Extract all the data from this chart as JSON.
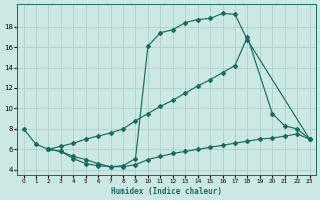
{
  "xlabel": "Humidex (Indice chaleur)",
  "bg_color": "#cce8e4",
  "line_color": "#1a6b5e",
  "grid_color": "#aed0cc",
  "xlim": [
    -0.5,
    23.5
  ],
  "ylim": [
    3.5,
    20.2
  ],
  "xticks": [
    0,
    1,
    2,
    3,
    4,
    5,
    6,
    7,
    8,
    9,
    10,
    11,
    12,
    13,
    14,
    15,
    16,
    17,
    18,
    19,
    20,
    21,
    22,
    23
  ],
  "yticks": [
    4,
    6,
    8,
    10,
    12,
    14,
    16,
    18
  ],
  "curve1_x": [
    0,
    1,
    2,
    3,
    4,
    5,
    6,
    7,
    8,
    9,
    10,
    11,
    12,
    13,
    14,
    15,
    16,
    17,
    18,
    23
  ],
  "curve1_y": [
    8.0,
    6.5,
    6.0,
    5.8,
    5.1,
    4.6,
    4.4,
    4.3,
    4.4,
    5.1,
    16.1,
    17.4,
    17.7,
    18.4,
    18.7,
    18.8,
    19.3,
    19.2,
    16.7,
    7.0
  ],
  "curve2_x": [
    2,
    3,
    4,
    5,
    6,
    7,
    8,
    9,
    10,
    11,
    12,
    13,
    14,
    15,
    16,
    17,
    18,
    20,
    21,
    22,
    23
  ],
  "curve2_y": [
    6.0,
    6.3,
    6.6,
    7.0,
    7.3,
    7.6,
    8.0,
    8.8,
    9.5,
    10.2,
    10.8,
    11.5,
    12.2,
    12.8,
    13.5,
    14.2,
    17.0,
    9.5,
    8.3,
    8.0,
    7.0
  ],
  "curve3_x": [
    2,
    3,
    4,
    5,
    6,
    7,
    8,
    9,
    10,
    11,
    12,
    13,
    14,
    15,
    16,
    17,
    18,
    19,
    20,
    21,
    22,
    23
  ],
  "curve3_y": [
    6.0,
    5.8,
    5.3,
    5.0,
    4.6,
    4.3,
    4.3,
    4.5,
    5.0,
    5.3,
    5.6,
    5.8,
    6.0,
    6.2,
    6.4,
    6.6,
    6.8,
    7.0,
    7.1,
    7.3,
    7.5,
    7.0
  ]
}
